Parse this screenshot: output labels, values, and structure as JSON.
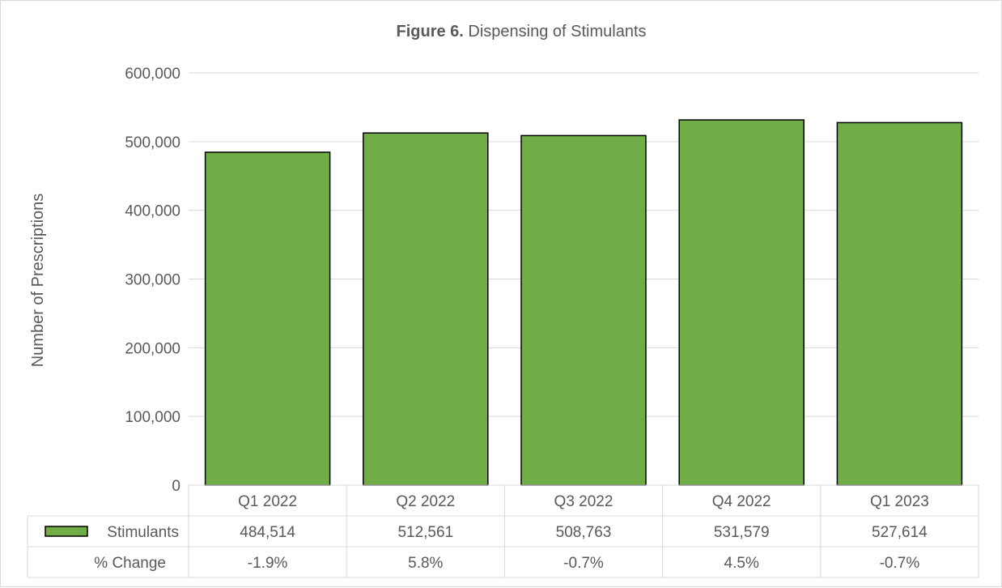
{
  "chart_data": {
    "type": "bar",
    "title_bold": "Figure 6.",
    "title_rest": " Dispensing of Stimulants",
    "ylabel": "Number of Prescriptions",
    "xlabel": "",
    "ylim": [
      0,
      600000
    ],
    "yticks": [
      0,
      100000,
      200000,
      300000,
      400000,
      500000,
      600000
    ],
    "ytick_labels": [
      "0",
      "100,000",
      "200,000",
      "300,000",
      "400,000",
      "500,000",
      "600,000"
    ],
    "categories": [
      "Q1 2022",
      "Q2 2022",
      "Q3 2022",
      "Q4 2022",
      "Q1 2023"
    ],
    "series": [
      {
        "name": "Stimulants",
        "values": [
          484514,
          512561,
          508763,
          531579,
          527614
        ],
        "color": "#70ad47"
      }
    ],
    "grid": true,
    "legend": "data-table",
    "data_table": {
      "rows": [
        {
          "label": "Stimulants",
          "cells": [
            "484,514",
            "512,561",
            "508,763",
            "531,579",
            "527,614"
          ],
          "legend_key": true
        },
        {
          "label": "% Change",
          "cells": [
            "-1.9%",
            "5.8%",
            "-0.7%",
            "4.5%",
            "-0.7%"
          ],
          "legend_key": false
        }
      ]
    }
  },
  "colors": {
    "bar_fill": "#70ad47",
    "bar_stroke": "#000000",
    "grid": "#d9d9d9",
    "text": "#595959"
  }
}
